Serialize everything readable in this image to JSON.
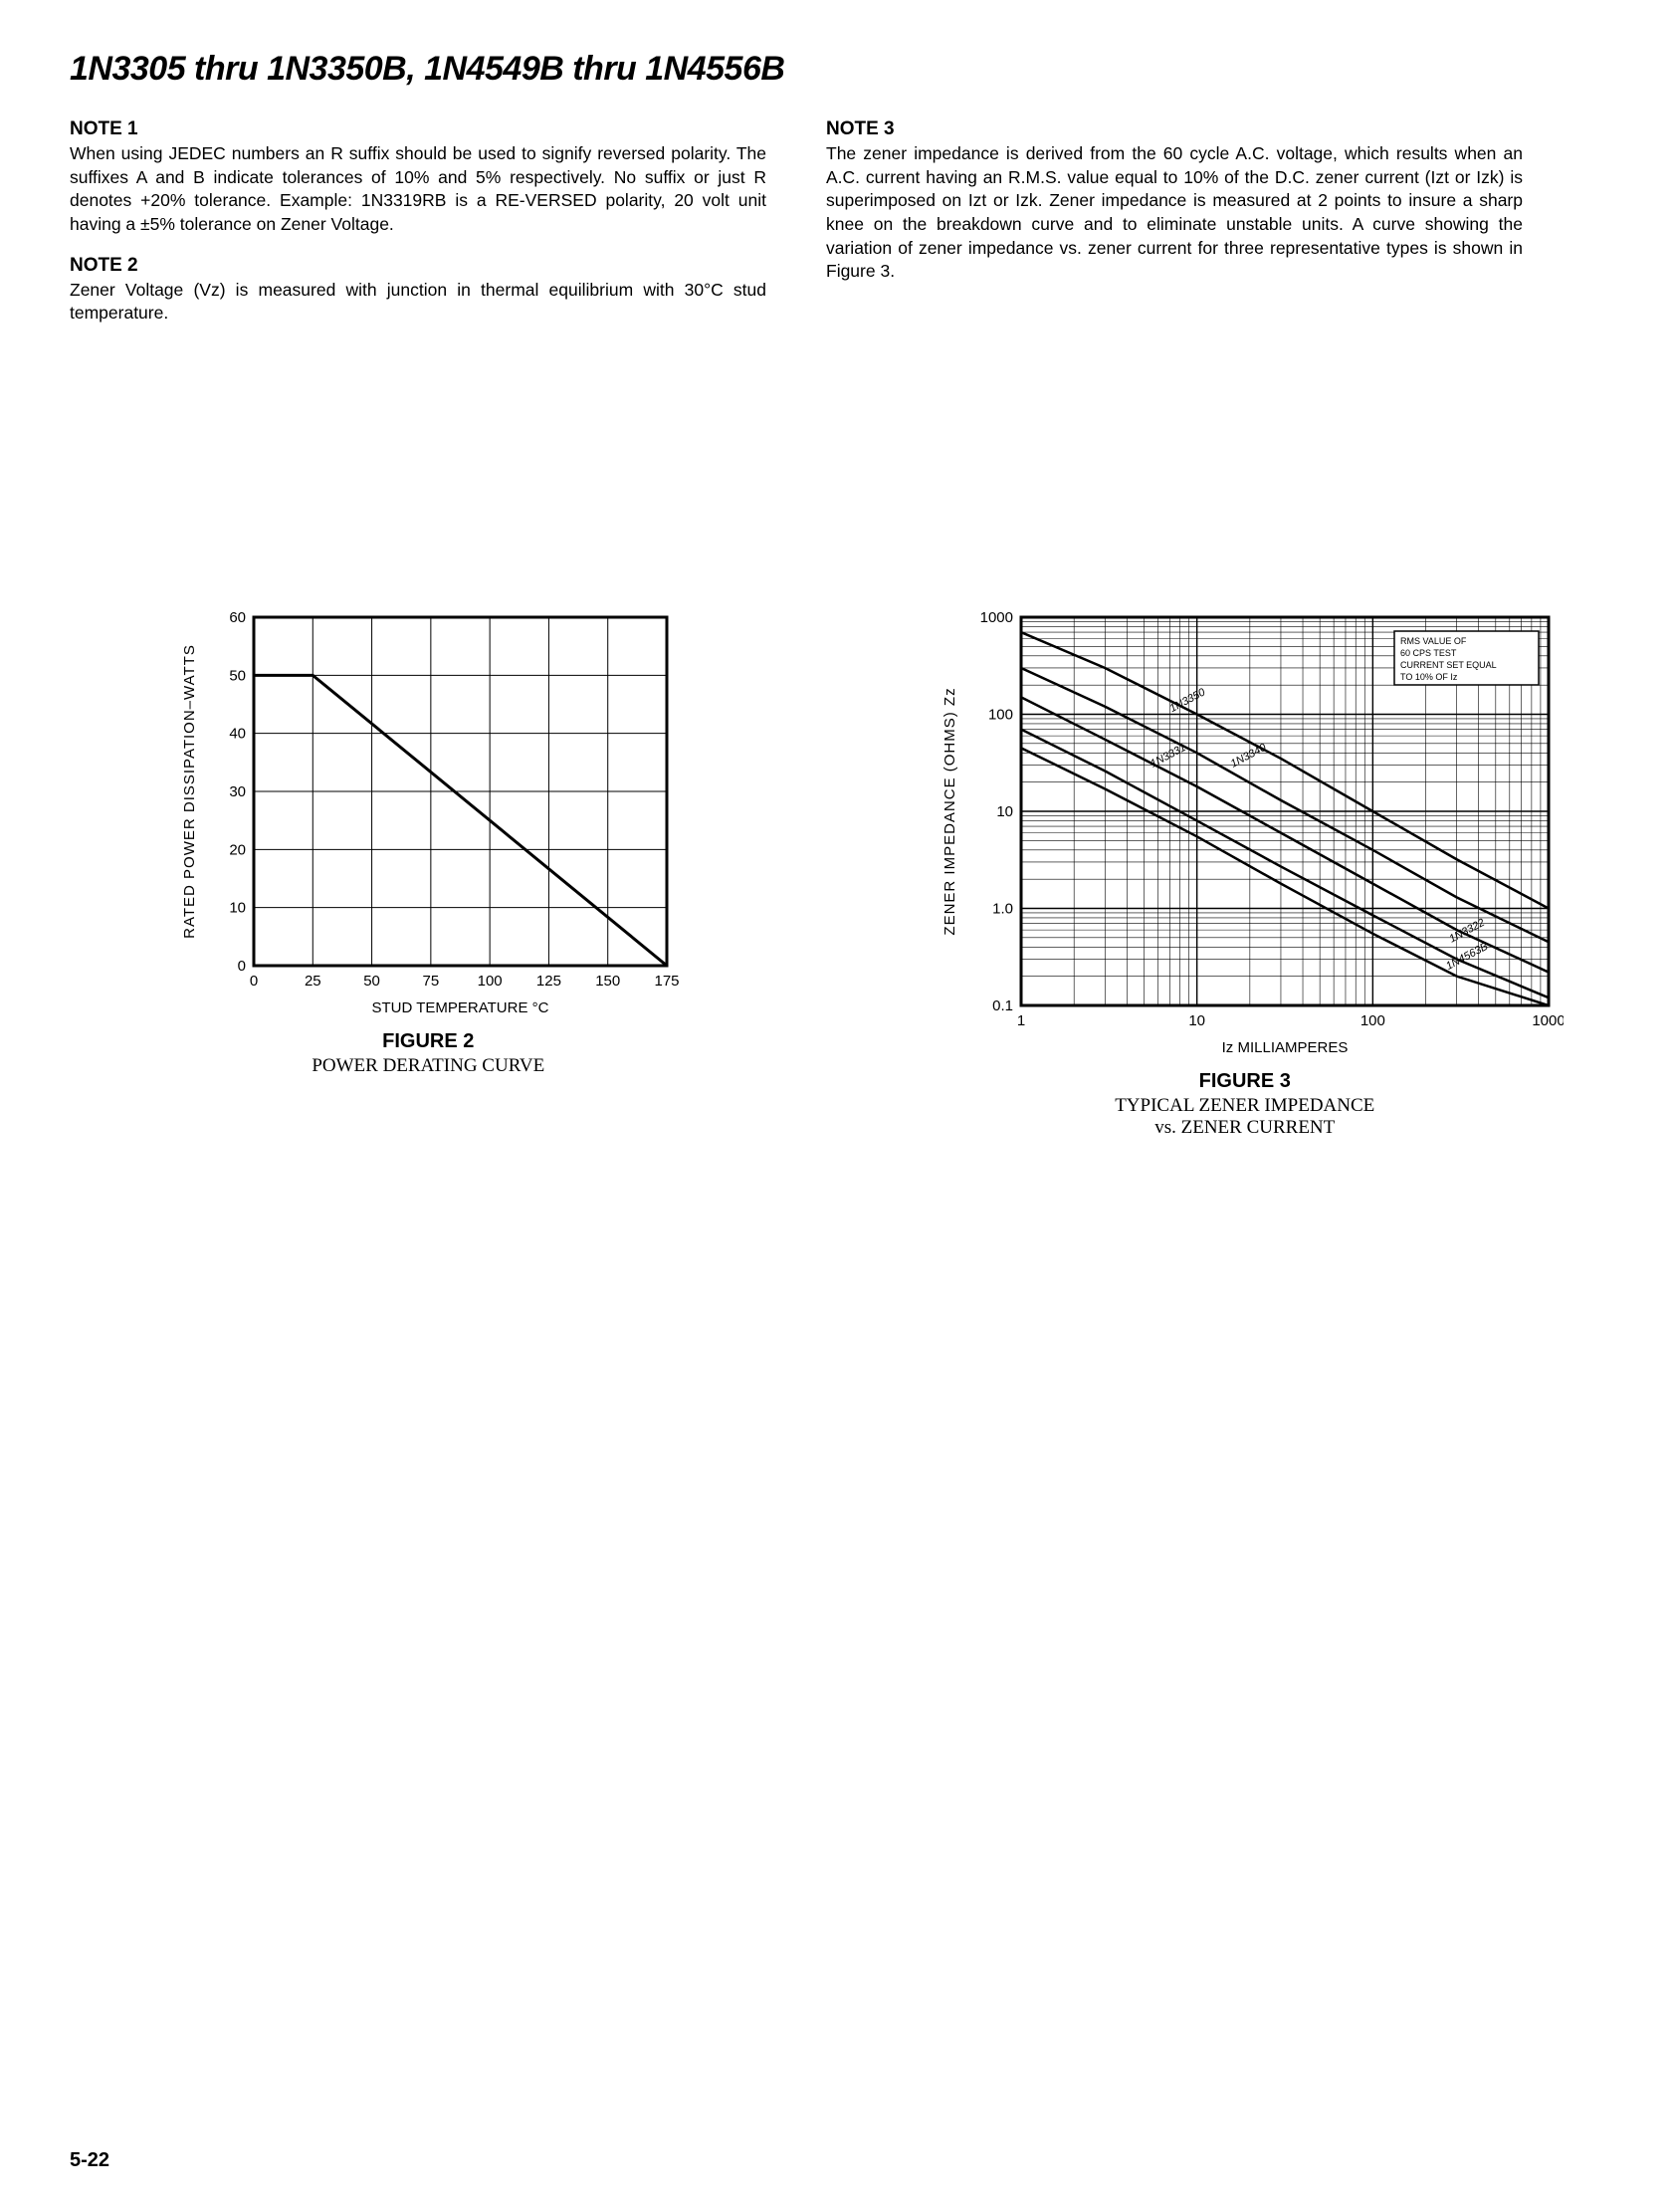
{
  "page": {
    "title": "1N3305 thru 1N3350B, 1N4549B thru 1N4556B",
    "page_number": "5-22"
  },
  "notes": {
    "note1": {
      "heading": "NOTE 1",
      "body": "When using JEDEC numbers an R suffix should be used to signify reversed polarity. The suffixes A and B indicate tolerances of 10% and 5% respectively. No suffix or just R denotes +20% tolerance. Example: 1N3319RB is a RE-VERSED polarity, 20 volt unit having a ±5% tolerance on Zener Voltage."
    },
    "note2": {
      "heading": "NOTE 2",
      "body": "Zener Voltage (Vz) is measured with junction in thermal equilibrium with 30°C stud temperature."
    },
    "note3": {
      "heading": "NOTE 3",
      "body": "The zener impedance is derived from the 60 cycle A.C. voltage, which results when an A.C. current having an R.M.S. value equal to 10% of the D.C. zener current (Izt or Izk) is superimposed on Izt or Izk. Zener impedance is measured at 2 points to insure a sharp knee on the breakdown curve and to eliminate unstable units. A curve showing the variation of zener impedance vs. zener current for three representative types is shown in Figure 3."
    }
  },
  "figure2": {
    "title": "FIGURE 2",
    "caption": "POWER DERATING CURVE",
    "xlabel": "STUD TEMPERATURE °C",
    "ylabel": "RATED POWER DISSIPATION–WATTS",
    "xlim": [
      0,
      175
    ],
    "ylim": [
      0,
      60
    ],
    "xticks": [
      0,
      25,
      50,
      75,
      100,
      125,
      150,
      175
    ],
    "yticks": [
      0,
      10,
      20,
      30,
      40,
      50,
      60
    ],
    "line": [
      [
        0,
        50
      ],
      [
        25,
        50
      ],
      [
        175,
        0
      ]
    ],
    "line_color": "#000000",
    "line_width": 3,
    "grid_color": "#000000",
    "background": "#ffffff",
    "tick_fontsize": 15,
    "label_fontsize": 15
  },
  "figure3": {
    "title": "FIGURE 3",
    "caption_line1": "TYPICAL ZENER IMPEDANCE",
    "caption_line2": "vs. ZENER CURRENT",
    "xlabel": "Iz MILLIAMPERES",
    "ylabel": "ZENER IMPEDANCE (OHMS) Zz",
    "xlim_log": [
      1,
      1000
    ],
    "ylim_log": [
      0.1,
      1000
    ],
    "xticks": [
      1,
      10,
      100,
      1000
    ],
    "yticks": [
      0.1,
      1.0,
      10,
      100,
      1000
    ],
    "ytick_labels": [
      "0.1",
      "1.0",
      "10",
      "100",
      "1000"
    ],
    "legend_text": [
      "RMS VALUE OF",
      "60 CPS TEST",
      "CURRENT SET EQUAL",
      "TO 10% OF Iz"
    ],
    "series": [
      {
        "label": "1N3350",
        "points": [
          [
            1,
            700
          ],
          [
            3,
            300
          ],
          [
            10,
            100
          ],
          [
            30,
            35
          ],
          [
            100,
            10
          ],
          [
            300,
            3.2
          ],
          [
            1000,
            1.0
          ]
        ]
      },
      {
        "label": "1N3340",
        "points": [
          [
            1,
            300
          ],
          [
            3,
            120
          ],
          [
            10,
            40
          ],
          [
            30,
            13
          ],
          [
            100,
            4.0
          ],
          [
            300,
            1.3
          ],
          [
            1000,
            0.45
          ]
        ]
      },
      {
        "label": "1N3331",
        "points": [
          [
            1,
            150
          ],
          [
            3,
            55
          ],
          [
            10,
            18
          ],
          [
            30,
            6
          ],
          [
            100,
            1.8
          ],
          [
            300,
            0.6
          ],
          [
            1000,
            0.22
          ]
        ]
      },
      {
        "label": "1N3322",
        "points": [
          [
            1,
            70
          ],
          [
            3,
            26
          ],
          [
            10,
            8
          ],
          [
            30,
            2.7
          ],
          [
            100,
            0.85
          ],
          [
            300,
            0.3
          ],
          [
            1000,
            0.12
          ]
        ]
      },
      {
        "label": "1N4563B",
        "points": [
          [
            1,
            45
          ],
          [
            3,
            17
          ],
          [
            10,
            5.5
          ],
          [
            30,
            1.8
          ],
          [
            100,
            0.55
          ],
          [
            300,
            0.2
          ],
          [
            1000,
            0.1
          ]
        ]
      }
    ],
    "curve_labels": [
      {
        "text": "1N3350",
        "x": 9,
        "y": 130,
        "angle": -28
      },
      {
        "text": "1N3340",
        "x": 20,
        "y": 35,
        "angle": -28
      },
      {
        "text": "1N3331",
        "x": 7,
        "y": 35,
        "angle": -28
      },
      {
        "text": "1N3322",
        "x": 350,
        "y": 0.55,
        "angle": -28
      },
      {
        "text": "1N4563B",
        "x": 350,
        "y": 0.3,
        "angle": -28
      }
    ],
    "line_color": "#000000",
    "line_width": 2.5,
    "grid_color": "#000000",
    "background": "#ffffff",
    "tick_fontsize": 15,
    "label_fontsize": 15,
    "legend_fontsize": 9
  }
}
